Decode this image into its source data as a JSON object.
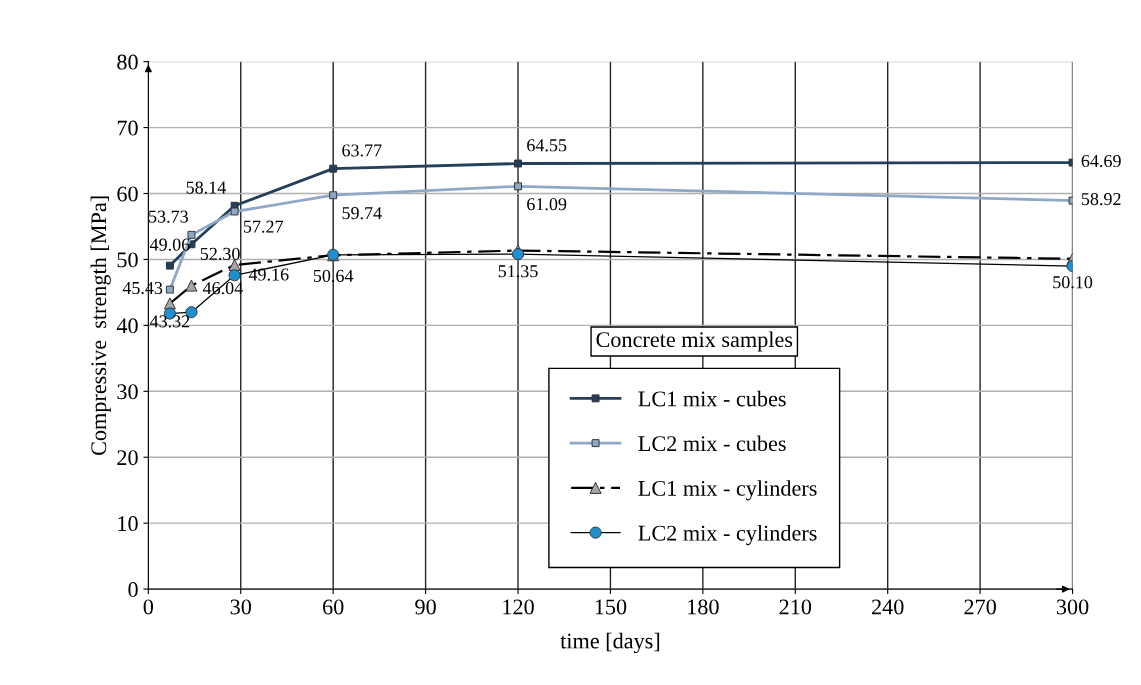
{
  "chart_data": {
    "type": "line",
    "xlabel": "time [days]",
    "ylabel": "Compressive  strength [MPa]",
    "legend_title": "Concrete mix samples",
    "x": [
      7,
      14,
      28,
      60,
      120,
      300
    ],
    "series": [
      {
        "name": "LC1 mix - cubes",
        "color": "#243f5c",
        "marker": "square",
        "line_style": "solid",
        "values": [
          49.06,
          52.3,
          58.14,
          63.77,
          64.55,
          64.69
        ],
        "value_labels": [
          "49.06",
          "52.30",
          "58.14",
          "63.77",
          "64.55",
          "64.69"
        ]
      },
      {
        "name": "LC2 mix - cubes",
        "color": "#8ea9c8",
        "marker": "square",
        "line_style": "solid",
        "values": [
          45.43,
          53.73,
          57.27,
          59.74,
          61.09,
          58.92
        ],
        "value_labels": [
          "45.43",
          "53.73",
          "57.27",
          "59.74",
          "61.09",
          "58.92"
        ]
      },
      {
        "name": "LC1 mix - cylinders",
        "color": "#000000",
        "marker": "triangle",
        "line_style": "dashed",
        "values": [
          43.32,
          46.04,
          49.16,
          50.64,
          51.35,
          50.1
        ],
        "value_labels": [
          "43.32",
          "46.04",
          "49.16",
          "50.64",
          "51.35",
          "50.10"
        ]
      },
      {
        "name": "LC2 mix - cylinders",
        "color": "#1e90d0",
        "marker": "circle",
        "line_style": "solid",
        "values": [
          41.8,
          42.0,
          47.6,
          50.7,
          50.8,
          49.0
        ]
      }
    ],
    "xlim": [
      0,
      300
    ],
    "xticks": [
      0,
      30,
      60,
      90,
      120,
      150,
      180,
      210,
      240,
      270,
      300
    ],
    "ylim": [
      0,
      80
    ],
    "yticks": [
      0,
      10,
      20,
      30,
      40,
      50,
      60,
      70,
      80
    ],
    "grid": true,
    "legend": "bottom right"
  }
}
